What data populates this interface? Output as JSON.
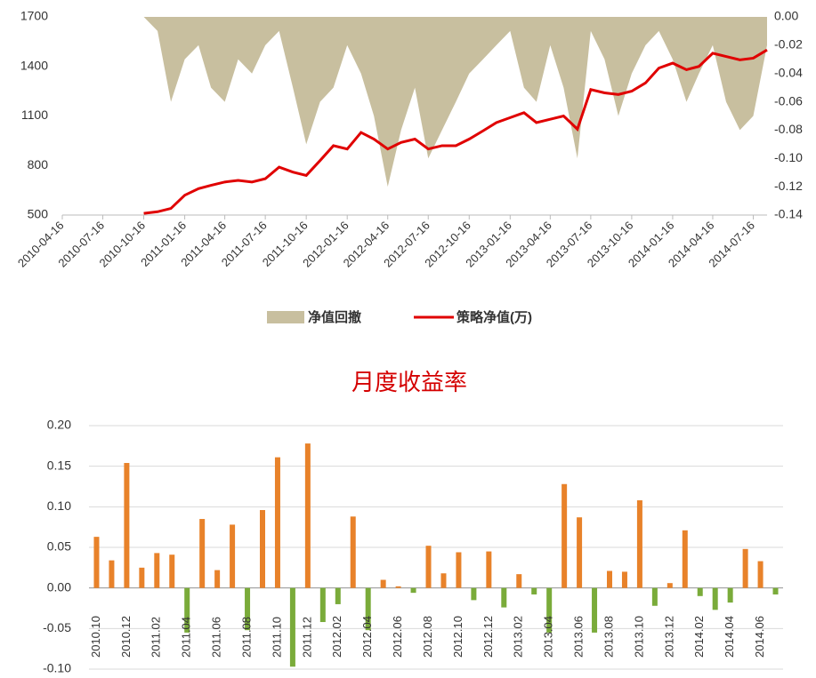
{
  "chart_data": [
    {
      "type": "line",
      "x": [
        "2010-10-16",
        "2010-11-16",
        "2010-12-16",
        "2011-01-16",
        "2011-02-16",
        "2011-03-16",
        "2011-04-16",
        "2011-05-16",
        "2011-06-16",
        "2011-07-16",
        "2011-08-16",
        "2011-09-16",
        "2011-10-16",
        "2011-11-16",
        "2011-12-16",
        "2012-01-16",
        "2012-02-16",
        "2012-03-16",
        "2012-04-16",
        "2012-05-16",
        "2012-06-16",
        "2012-07-16",
        "2012-08-16",
        "2012-09-16",
        "2012-10-16",
        "2012-11-16",
        "2012-12-16",
        "2013-01-16",
        "2013-02-16",
        "2013-03-16",
        "2013-04-16",
        "2013-05-16",
        "2013-06-16",
        "2013-07-16",
        "2013-08-16",
        "2013-09-16",
        "2013-10-16",
        "2013-11-16",
        "2013-12-16",
        "2014-01-16",
        "2014-02-16",
        "2014-03-16",
        "2014-04-16",
        "2014-05-16",
        "2014-06-16",
        "2014-07-16",
        "2014-08-16"
      ],
      "xlim": [
        "2010-04-16",
        "2014-08-16"
      ],
      "xticks": [
        "2010-04-16",
        "2010-07-16",
        "2010-10-16",
        "2011-01-16",
        "2011-04-16",
        "2011-07-16",
        "2011-10-16",
        "2012-01-16",
        "2012-04-16",
        "2012-07-16",
        "2012-10-16",
        "2013-01-16",
        "2013-04-16",
        "2013-07-16",
        "2013-10-16",
        "2014-01-16",
        "2014-04-16",
        "2014-07-16"
      ],
      "ylim": [
        500,
        1700
      ],
      "yticks": [
        500,
        800,
        1100,
        1400,
        1700
      ],
      "y2lim": [
        -0.14,
        0
      ],
      "y2ticks": [
        {
          "value": 0,
          "label": "0.00"
        },
        -0.02,
        -0.04,
        -0.06,
        -0.08,
        {
          "value": -0.1,
          "label": "-0.10"
        },
        -0.12,
        -0.14
      ],
      "series": [
        {
          "name": "净值回撤",
          "type": "area",
          "axis": "y2",
          "color": "#c8bf9f",
          "values": [
            0,
            -0.01,
            -0.06,
            -0.03,
            -0.02,
            -0.05,
            -0.06,
            -0.03,
            -0.04,
            -0.02,
            -0.01,
            -0.05,
            -0.09,
            -0.06,
            -0.05,
            -0.02,
            -0.04,
            -0.07,
            -0.12,
            -0.08,
            -0.05,
            -0.1,
            -0.08,
            -0.06,
            -0.04,
            -0.03,
            -0.02,
            -0.01,
            -0.05,
            -0.06,
            -0.02,
            -0.05,
            -0.1,
            -0.01,
            -0.03,
            -0.07,
            -0.04,
            -0.02,
            -0.01,
            -0.03,
            -0.06,
            -0.04,
            -0.02,
            -0.06,
            -0.08,
            -0.07,
            -0.02
          ]
        },
        {
          "name": "策略净值(万)",
          "type": "line",
          "color": "#e00000",
          "values": [
            510,
            520,
            540,
            620,
            660,
            680,
            700,
            710,
            700,
            720,
            790,
            760,
            740,
            830,
            920,
            900,
            1000,
            960,
            900,
            940,
            960,
            900,
            920,
            920,
            960,
            1010,
            1060,
            1090,
            1120,
            1060,
            1080,
            1100,
            1020,
            1260,
            1240,
            1230,
            1250,
            1300,
            1390,
            1420,
            1380,
            1400,
            1480,
            1460,
            1440,
            1450,
            1500
          ]
        }
      ]
    },
    {
      "type": "bar",
      "title": "月度收益率",
      "categories": [
        "2010.10",
        null,
        "2010.12",
        null,
        "2011.02",
        null,
        "2011.04",
        null,
        "2011.06",
        null,
        "2011.08",
        null,
        "2011.10",
        null,
        "2011.12",
        null,
        "2012.02",
        null,
        "2012.04",
        null,
        "2012.06",
        null,
        "2012.08",
        null,
        "2012.10",
        null,
        "2012.12",
        null,
        "2013.02",
        null,
        "2013.04",
        null,
        "2013.06",
        null,
        "2013.08",
        null,
        "2013.10",
        null,
        "2013.12",
        null,
        "2014.02",
        null,
        "2014.04",
        null,
        "2014.06",
        null
      ],
      "values": [
        0.063,
        0.034,
        0.154,
        0.025,
        0.043,
        0.041,
        -0.055,
        0.085,
        0.022,
        0.078,
        -0.052,
        0.096,
        0.161,
        -0.097,
        0.178,
        -0.042,
        -0.02,
        0.088,
        -0.052,
        0.01,
        0.002,
        -0.006,
        0.052,
        0.018,
        0.044,
        -0.015,
        0.045,
        -0.024,
        0.017,
        -0.008,
        -0.055,
        0.128,
        0.087,
        -0.055,
        0.021,
        0.02,
        0.108,
        -0.022,
        0.006,
        0.071,
        -0.01,
        -0.027,
        -0.018,
        0.048,
        0.033,
        -0.008
      ],
      "color_positive": "#e8822a",
      "color_negative": "#7aab3a",
      "ylim": [
        -0.1,
        0.2
      ],
      "yticks": [
        {
          "value": -0.1,
          "label": "-0.10"
        },
        -0.05,
        {
          "value": 0,
          "label": "0.00"
        },
        0.05,
        {
          "value": 0.1,
          "label": "0.10"
        },
        0.15,
        {
          "value": 0.2,
          "label": "0.20"
        }
      ],
      "grid": true
    }
  ]
}
